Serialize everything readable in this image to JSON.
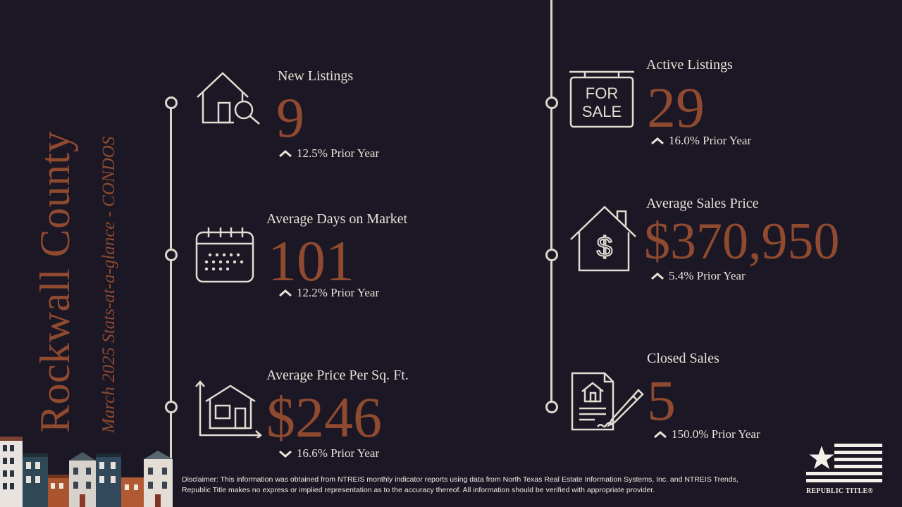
{
  "title": {
    "county": "Rockwall County",
    "subtitle": "March 2025 Stats-at-a-glance - CONDOS"
  },
  "stats": {
    "new_listings": {
      "label": "New Listings",
      "value": "9",
      "change": "12.5% Prior Year",
      "direction": "up",
      "icon": "house-search-icon"
    },
    "avg_dom": {
      "label": "Average Days on Market",
      "value": "101",
      "change": "12.2% Prior Year",
      "direction": "up",
      "icon": "calendar-icon"
    },
    "avg_ppsf": {
      "label": "Average Price Per Sq. Ft.",
      "value": "$246",
      "change": "16.6% Prior Year",
      "direction": "down",
      "icon": "house-chart-icon"
    },
    "active_listings": {
      "label": "Active Listings",
      "value": "29",
      "change": "16.0% Prior Year",
      "direction": "up",
      "icon": "for-sale-sign-icon",
      "sign_line1": "FOR",
      "sign_line2": "SALE"
    },
    "avg_sales_price": {
      "label": "Average Sales Price",
      "value": "$370,950",
      "change": "5.4% Prior Year",
      "direction": "up",
      "icon": "house-dollar-icon"
    },
    "closed_sales": {
      "label": "Closed Sales",
      "value": "5",
      "change": "150.0% Prior Year",
      "direction": "up",
      "icon": "signed-contract-icon"
    }
  },
  "disclaimer": "Disclaimer: This information was obtained from NTREIS monthly indicator reports using data from North Texas Real Estate Information Systems, Inc. and NTREIS Trends, Republic Title makes no express or implied representation as to the accuracy thereof. All information should be verified with appropriate provider.",
  "logo": {
    "text": "REPUBLIC TITLE®",
    "icon": "republic-title-flag-icon"
  },
  "colors": {
    "background": "#1b1724",
    "accent": "#8f4a30",
    "text": "#e9e2d8"
  }
}
